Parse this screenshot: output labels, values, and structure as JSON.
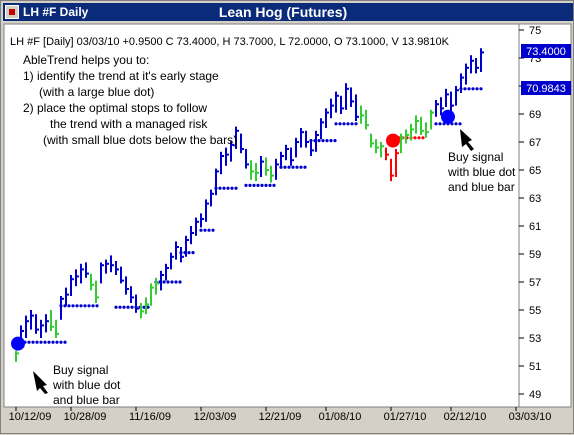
{
  "window": {
    "symbol_title": "LH #F Daily",
    "chart_title": "Lean Hog (Futures)"
  },
  "quote_line": "LH #F [Daily] 03/03/10 +0.9500 C 73.4000, H 73.7000, L 72.0000, O 73.1000, V 13.9810K",
  "price_labels": {
    "upper": "73.4000",
    "lower": "70.9843"
  },
  "notes": {
    "intro": "AbleTrend helps you to:",
    "line1a": "1) identify the trend at it's early stage",
    "line1b": "(with a large blue dot)",
    "line2a": "2) place the optimal stops to follow",
    "line2b": "the trend with a managed risk",
    "line2c": "(with small blue dots below the bars)"
  },
  "annotations": [
    {
      "lines": [
        "Buy signal",
        "with blue dot",
        "and blue bar"
      ]
    },
    {
      "lines": [
        "Buy signal",
        "with blue dot",
        "and blue bar"
      ]
    }
  ],
  "colors": {
    "up_trend": "#0000cc",
    "neutral": "#33cc33",
    "down_trend": "#ff0000",
    "signal_buy": "#0000ff",
    "signal_sell": "#ff0000",
    "title_bg": "#0a2a7a"
  },
  "chart_data": {
    "type": "ohlc",
    "title": "Lean Hog (Futures)",
    "y_axis": {
      "min": 49,
      "max": 75,
      "ticks": [
        49,
        51,
        53,
        55,
        57,
        59,
        61,
        63,
        65,
        67,
        69,
        71,
        73,
        75
      ],
      "position": "right"
    },
    "x_axis": {
      "ticks": [
        {
          "label": "10/12/09",
          "index": 0
        },
        {
          "label": "10/28/09",
          "index": 11
        },
        {
          "label": "11/16/09",
          "index": 24
        },
        {
          "label": "12/03/09",
          "index": 37
        },
        {
          "label": "12/21/09",
          "index": 50
        },
        {
          "label": "01/08/10",
          "index": 62
        },
        {
          "label": "01/27/10",
          "index": 75
        },
        {
          "label": "02/12/10",
          "index": 87
        },
        {
          "label": "03/03/10",
          "index": 100
        }
      ]
    },
    "bars": [
      {
        "i": 0,
        "h": 52.1,
        "l": 51.3,
        "c": 51.9,
        "t": "g"
      },
      {
        "i": 1,
        "h": 53.9,
        "l": 52.2,
        "c": 53.5,
        "t": "b"
      },
      {
        "i": 2,
        "h": 54.6,
        "l": 53.0,
        "c": 54.2,
        "t": "b"
      },
      {
        "i": 3,
        "h": 55.0,
        "l": 53.6,
        "c": 54.6,
        "t": "b"
      },
      {
        "i": 4,
        "h": 54.7,
        "l": 53.3,
        "c": 53.6,
        "t": "b"
      },
      {
        "i": 5,
        "h": 54.3,
        "l": 53.0,
        "c": 53.9,
        "t": "b"
      },
      {
        "i": 6,
        "h": 54.7,
        "l": 53.4,
        "c": 54.2,
        "t": "b"
      },
      {
        "i": 7,
        "h": 55.0,
        "l": 53.5,
        "c": 53.8,
        "t": "g"
      },
      {
        "i": 8,
        "h": 54.3,
        "l": 53.0,
        "c": 53.3,
        "t": "g"
      },
      {
        "i": 9,
        "h": 56.0,
        "l": 54.3,
        "c": 55.8,
        "t": "b"
      },
      {
        "i": 10,
        "h": 56.6,
        "l": 55.3,
        "c": 56.1,
        "t": "b"
      },
      {
        "i": 11,
        "h": 57.5,
        "l": 56.0,
        "c": 57.2,
        "t": "b"
      },
      {
        "i": 12,
        "h": 57.9,
        "l": 56.7,
        "c": 57.4,
        "t": "b"
      },
      {
        "i": 13,
        "h": 58.3,
        "l": 56.9,
        "c": 57.9,
        "t": "b"
      },
      {
        "i": 14,
        "h": 58.4,
        "l": 57.3,
        "c": 57.6,
        "t": "b"
      },
      {
        "i": 15,
        "h": 57.6,
        "l": 56.4,
        "c": 56.8,
        "t": "g"
      },
      {
        "i": 16,
        "h": 57.1,
        "l": 55.5,
        "c": 55.9,
        "t": "g"
      },
      {
        "i": 17,
        "h": 58.4,
        "l": 56.9,
        "c": 58.2,
        "t": "b"
      },
      {
        "i": 18,
        "h": 58.6,
        "l": 57.6,
        "c": 58.3,
        "t": "b"
      },
      {
        "i": 19,
        "h": 58.9,
        "l": 57.7,
        "c": 58.2,
        "t": "b"
      },
      {
        "i": 20,
        "h": 58.5,
        "l": 57.5,
        "c": 57.9,
        "t": "b"
      },
      {
        "i": 21,
        "h": 58.1,
        "l": 56.9,
        "c": 57.1,
        "t": "b"
      },
      {
        "i": 22,
        "h": 57.4,
        "l": 56.1,
        "c": 56.5,
        "t": "b"
      },
      {
        "i": 23,
        "h": 56.7,
        "l": 55.5,
        "c": 55.9,
        "t": "b"
      },
      {
        "i": 24,
        "h": 56.1,
        "l": 54.8,
        "c": 55.1,
        "t": "b"
      },
      {
        "i": 25,
        "h": 55.5,
        "l": 54.4,
        "c": 54.9,
        "t": "g"
      },
      {
        "i": 26,
        "h": 55.9,
        "l": 54.7,
        "c": 55.4,
        "t": "g"
      },
      {
        "i": 27,
        "h": 56.9,
        "l": 55.3,
        "c": 56.6,
        "t": "g"
      },
      {
        "i": 28,
        "h": 57.3,
        "l": 56.1,
        "c": 56.9,
        "t": "g"
      },
      {
        "i": 29,
        "h": 57.8,
        "l": 56.4,
        "c": 57.5,
        "t": "b"
      },
      {
        "i": 30,
        "h": 58.3,
        "l": 57.1,
        "c": 58.0,
        "t": "b"
      },
      {
        "i": 31,
        "h": 59.1,
        "l": 57.9,
        "c": 58.8,
        "t": "b"
      },
      {
        "i": 32,
        "h": 59.9,
        "l": 58.6,
        "c": 59.5,
        "t": "b"
      },
      {
        "i": 33,
        "h": 59.5,
        "l": 58.4,
        "c": 58.8,
        "t": "b"
      },
      {
        "i": 34,
        "h": 60.3,
        "l": 58.8,
        "c": 60.0,
        "t": "b"
      },
      {
        "i": 35,
        "h": 61.0,
        "l": 59.7,
        "c": 60.5,
        "t": "b"
      },
      {
        "i": 36,
        "h": 61.6,
        "l": 60.3,
        "c": 61.3,
        "t": "b"
      },
      {
        "i": 37,
        "h": 61.9,
        "l": 60.9,
        "c": 61.5,
        "t": "b"
      },
      {
        "i": 38,
        "h": 62.9,
        "l": 61.3,
        "c": 62.6,
        "t": "b"
      },
      {
        "i": 39,
        "h": 63.6,
        "l": 62.4,
        "c": 63.3,
        "t": "b"
      },
      {
        "i": 40,
        "h": 65.1,
        "l": 63.2,
        "c": 64.9,
        "t": "b"
      },
      {
        "i": 41,
        "h": 66.3,
        "l": 64.7,
        "c": 66.0,
        "t": "b"
      },
      {
        "i": 42,
        "h": 66.6,
        "l": 65.3,
        "c": 66.1,
        "t": "b"
      },
      {
        "i": 43,
        "h": 67.1,
        "l": 65.6,
        "c": 66.8,
        "t": "b"
      },
      {
        "i": 44,
        "h": 68.1,
        "l": 66.5,
        "c": 67.8,
        "t": "b"
      },
      {
        "i": 45,
        "h": 67.6,
        "l": 66.2,
        "c": 66.5,
        "t": "b"
      },
      {
        "i": 46,
        "h": 66.5,
        "l": 65.1,
        "c": 65.4,
        "t": "b"
      },
      {
        "i": 47,
        "h": 65.7,
        "l": 64.3,
        "c": 64.9,
        "t": "g"
      },
      {
        "i": 48,
        "h": 65.5,
        "l": 64.2,
        "c": 64.8,
        "t": "g"
      },
      {
        "i": 49,
        "h": 66.0,
        "l": 64.5,
        "c": 65.6,
        "t": "b"
      },
      {
        "i": 50,
        "h": 65.9,
        "l": 64.6,
        "c": 65.0,
        "t": "g"
      },
      {
        "i": 51,
        "h": 65.3,
        "l": 64.1,
        "c": 64.6,
        "t": "g"
      },
      {
        "i": 52,
        "h": 65.8,
        "l": 64.3,
        "c": 65.4,
        "t": "b"
      },
      {
        "i": 53,
        "h": 66.3,
        "l": 65.1,
        "c": 66.0,
        "t": "b"
      },
      {
        "i": 54,
        "h": 66.8,
        "l": 65.7,
        "c": 66.5,
        "t": "b"
      },
      {
        "i": 55,
        "h": 66.6,
        "l": 65.3,
        "c": 65.7,
        "t": "b"
      },
      {
        "i": 56,
        "h": 67.3,
        "l": 65.9,
        "c": 67.0,
        "t": "b"
      },
      {
        "i": 57,
        "h": 68.0,
        "l": 66.6,
        "c": 67.7,
        "t": "b"
      },
      {
        "i": 58,
        "h": 67.8,
        "l": 66.6,
        "c": 67.0,
        "t": "b"
      },
      {
        "i": 59,
        "h": 67.2,
        "l": 66.0,
        "c": 66.4,
        "t": "b"
      },
      {
        "i": 60,
        "h": 67.8,
        "l": 66.3,
        "c": 67.5,
        "t": "b"
      },
      {
        "i": 61,
        "h": 68.7,
        "l": 67.2,
        "c": 68.4,
        "t": "b"
      },
      {
        "i": 62,
        "h": 69.4,
        "l": 68.0,
        "c": 69.1,
        "t": "b"
      },
      {
        "i": 63,
        "h": 70.1,
        "l": 68.7,
        "c": 69.6,
        "t": "b"
      },
      {
        "i": 64,
        "h": 70.6,
        "l": 69.1,
        "c": 70.3,
        "t": "b"
      },
      {
        "i": 65,
        "h": 70.3,
        "l": 69.0,
        "c": 69.4,
        "t": "b"
      },
      {
        "i": 66,
        "h": 71.2,
        "l": 69.3,
        "c": 70.8,
        "t": "b"
      },
      {
        "i": 67,
        "h": 70.9,
        "l": 69.5,
        "c": 69.9,
        "t": "b"
      },
      {
        "i": 68,
        "h": 70.4,
        "l": 68.5,
        "c": 68.8,
        "t": "b"
      },
      {
        "i": 69,
        "h": 69.6,
        "l": 68.3,
        "c": 68.9,
        "t": "g"
      },
      {
        "i": 70,
        "h": 69.3,
        "l": 67.9,
        "c": 68.2,
        "t": "g"
      },
      {
        "i": 71,
        "h": 67.6,
        "l": 66.6,
        "c": 66.9,
        "t": "g"
      },
      {
        "i": 72,
        "h": 67.2,
        "l": 66.2,
        "c": 66.6,
        "t": "g"
      },
      {
        "i": 73,
        "h": 67.0,
        "l": 65.9,
        "c": 66.7,
        "t": "g"
      },
      {
        "i": 74,
        "h": 66.6,
        "l": 65.7,
        "c": 66.1,
        "t": "r"
      },
      {
        "i": 75,
        "h": 65.8,
        "l": 64.2,
        "c": 64.6,
        "t": "r"
      },
      {
        "i": 76,
        "h": 66.5,
        "l": 64.5,
        "c": 66.2,
        "t": "r"
      },
      {
        "i": 77,
        "h": 67.6,
        "l": 66.2,
        "c": 67.3,
        "t": "g"
      },
      {
        "i": 78,
        "h": 67.9,
        "l": 66.9,
        "c": 67.5,
        "t": "g"
      },
      {
        "i": 79,
        "h": 68.3,
        "l": 67.1,
        "c": 67.9,
        "t": "g"
      },
      {
        "i": 80,
        "h": 68.9,
        "l": 67.6,
        "c": 68.5,
        "t": "g"
      },
      {
        "i": 81,
        "h": 68.8,
        "l": 67.5,
        "c": 67.8,
        "t": "g"
      },
      {
        "i": 82,
        "h": 68.4,
        "l": 67.3,
        "c": 67.7,
        "t": "g"
      },
      {
        "i": 83,
        "h": 69.3,
        "l": 67.9,
        "c": 69.1,
        "t": "g"
      },
      {
        "i": 84,
        "h": 70.0,
        "l": 68.8,
        "c": 69.7,
        "t": "b"
      },
      {
        "i": 85,
        "h": 70.2,
        "l": 68.9,
        "c": 69.4,
        "t": "b"
      },
      {
        "i": 86,
        "h": 70.8,
        "l": 69.5,
        "c": 70.4,
        "t": "b"
      },
      {
        "i": 87,
        "h": 70.6,
        "l": 69.1,
        "c": 69.6,
        "t": "b"
      },
      {
        "i": 88,
        "h": 71.0,
        "l": 69.6,
        "c": 70.7,
        "t": "b"
      },
      {
        "i": 89,
        "h": 71.9,
        "l": 70.5,
        "c": 71.6,
        "t": "b"
      },
      {
        "i": 90,
        "h": 72.6,
        "l": 71.1,
        "c": 72.3,
        "t": "b"
      },
      {
        "i": 91,
        "h": 73.2,
        "l": 71.9,
        "c": 72.8,
        "t": "b"
      },
      {
        "i": 92,
        "h": 73.0,
        "l": 71.9,
        "c": 72.3,
        "t": "b"
      },
      {
        "i": 93,
        "h": 73.7,
        "l": 72.0,
        "c": 73.4,
        "t": "b"
      }
    ],
    "stops": [
      {
        "from": 1,
        "to": 10,
        "value": 52.7
      },
      {
        "from": 9,
        "to": 17,
        "value": 55.3
      },
      {
        "from": 20,
        "to": 27,
        "value": 55.2
      },
      {
        "from": 28,
        "to": 33,
        "value": 57.0
      },
      {
        "from": 33,
        "to": 36,
        "value": 59.1
      },
      {
        "from": 37,
        "to": 40,
        "value": 60.7
      },
      {
        "from": 40,
        "to": 44,
        "value": 63.7
      },
      {
        "from": 46,
        "to": 52,
        "value": 63.9
      },
      {
        "from": 53,
        "to": 58,
        "value": 65.2
      },
      {
        "from": 59,
        "to": 64,
        "value": 67.1
      },
      {
        "from": 64,
        "to": 68,
        "value": 68.3
      },
      {
        "from": 84,
        "to": 89,
        "value": 68.3
      },
      {
        "from": 89,
        "to": 93,
        "value": 70.8
      }
    ],
    "resistance_dots": [
      {
        "from": 75,
        "to": 82,
        "value": 67.3
      }
    ],
    "signals": [
      {
        "type": "buy",
        "i": 0,
        "value": 52.6
      },
      {
        "type": "sell",
        "i": 75,
        "value": 67.1
      },
      {
        "type": "buy",
        "i": 86,
        "value": 68.8
      }
    ]
  }
}
